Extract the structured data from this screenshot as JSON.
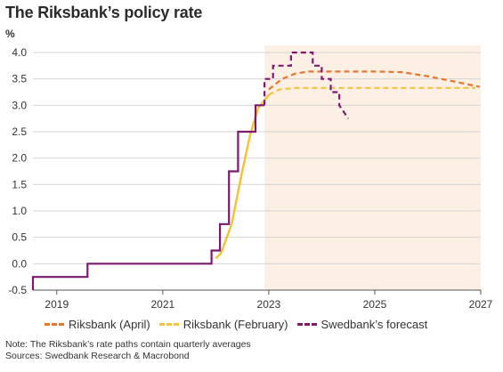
{
  "title": "The Riksbank’s policy rate",
  "unit": "%",
  "note": "Note: The Riksbank’s rate paths contain quarterly averages",
  "sources": "Sources: Swedbank Research & Macrobond",
  "chart_data": {
    "type": "line",
    "title": "The Riksbank’s policy rate",
    "ylabel": "%",
    "xlim": [
      2018.55,
      2027.0
    ],
    "ylim": [
      -0.5,
      4.0
    ],
    "yticks": [
      -0.5,
      0.0,
      0.5,
      1.0,
      1.5,
      2.0,
      2.5,
      3.0,
      3.5,
      4.0
    ],
    "ytick_labels": [
      "-0.5",
      "0.0",
      "0.5",
      "1.0",
      "1.5",
      "2.0",
      "2.5",
      "3.0",
      "3.5",
      "4.0"
    ],
    "xticks": [
      2019,
      2021,
      2023,
      2025,
      2027
    ],
    "xtick_labels": [
      "2019",
      "2021",
      "2023",
      "2025",
      "2027"
    ],
    "forecast_shading_start": 2022.92,
    "grid": "horizontal",
    "legend_position": "bottom",
    "colors": {
      "actual": "#7b1a6e",
      "april": "#e8772e",
      "february": "#f2c43d",
      "swedbank": "#7b1a6e",
      "shading": "#fcefe3"
    },
    "series": [
      {
        "key": "actual",
        "style": "step",
        "x": [
          2018.55,
          2018.55,
          2019.58,
          2019.58,
          2021.92,
          2021.92,
          2022.08,
          2022.08,
          2022.25,
          2022.25,
          2022.42,
          2022.42,
          2022.75,
          2022.75,
          2022.92
        ],
        "y": [
          -0.5,
          -0.25,
          -0.25,
          0.0,
          0.0,
          0.25,
          0.25,
          0.75,
          0.75,
          1.75,
          1.75,
          2.5,
          2.5,
          3.0,
          3.0
        ]
      },
      {
        "key": "february",
        "name": "Riksbank (February)",
        "style": "dashed-after",
        "dash_from": 2023.0,
        "x": [
          2022.0,
          2022.1,
          2022.3,
          2022.5,
          2022.65,
          2022.8,
          2023.0,
          2023.2,
          2023.5,
          2024.0,
          2025.0,
          2026.0,
          2026.9
        ],
        "y": [
          0.1,
          0.2,
          0.75,
          1.75,
          2.45,
          2.95,
          3.2,
          3.3,
          3.33,
          3.33,
          3.33,
          3.33,
          3.33
        ]
      },
      {
        "key": "april",
        "name": "Riksbank (April)",
        "style": "dashed",
        "x": [
          2023.0,
          2023.25,
          2023.5,
          2023.75,
          2024.0,
          2024.5,
          2025.0,
          2025.5,
          2026.0,
          2026.5,
          2026.98
        ],
        "y": [
          3.3,
          3.5,
          3.6,
          3.64,
          3.64,
          3.64,
          3.64,
          3.63,
          3.55,
          3.45,
          3.35
        ]
      },
      {
        "key": "swedbank",
        "name": "Swedbank’s forecast",
        "style": "dashed-step",
        "x": [
          2022.92,
          2022.92,
          2023.08,
          2023.08,
          2023.25,
          2023.25,
          2023.42,
          2023.42,
          2023.83,
          2023.83,
          2024.0,
          2024.0,
          2024.17,
          2024.17,
          2024.33,
          2024.33,
          2024.5
        ],
        "y": [
          3.0,
          3.5,
          3.5,
          3.75,
          3.75,
          3.75,
          3.75,
          4.0,
          4.0,
          3.75,
          3.75,
          3.5,
          3.5,
          3.25,
          3.25,
          3.0,
          2.75
        ]
      }
    ],
    "legend": [
      {
        "key": "april",
        "label": "Riksbank (April)"
      },
      {
        "key": "february",
        "label": "Riksbank (February)"
      },
      {
        "key": "swedbank",
        "label": "Swedbank’s forecast"
      }
    ]
  }
}
